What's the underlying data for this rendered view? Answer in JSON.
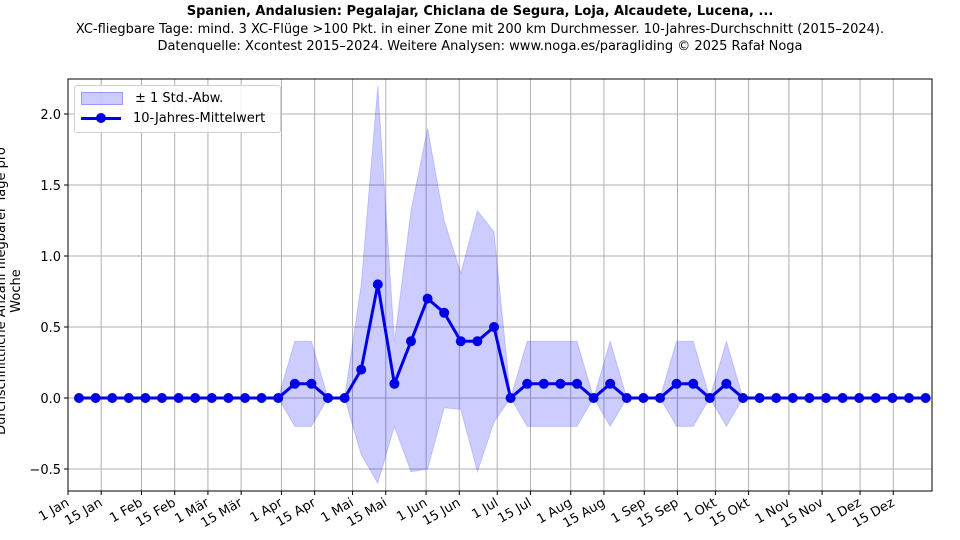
{
  "header": {
    "title": "Spanien, Andalusien: Pegalajar, Chiclana de Segura, Loja, Alcaudete, Lucena, ...",
    "subtitle": "XC-fliegbare Tage: mind. 3 XC-Flüge >100 Pkt. in einer Zone mit 200 km Durchmesser. 10-Jahres-Durchschnitt (2015–2024).",
    "source": "Datenquelle: Xcontest 2015–2024. Weitere Analysen: www.noga.es/paragliding © 2025 Rafał Noga"
  },
  "legend": {
    "band_label": "± 1 Std.-Abw.",
    "line_label": "10-Jahres-Mittelwert"
  },
  "colors": {
    "line": "#0000e6",
    "band": "rgba(0,0,255,0.2)",
    "grid": "#b0b0b0"
  },
  "chart_data": {
    "type": "line",
    "title": "Spanien, Andalusien: Pegalajar, Chiclana de Segura, Loja, Alcaudete, Lucena, ...",
    "xlabel": "",
    "ylabel": "Durchschnittliche Anzahl fliegbarer Tage pro Woche",
    "ylim": [
      -0.65,
      2.25
    ],
    "yticks": [
      -0.5,
      0.0,
      0.5,
      1.0,
      1.5,
      2.0
    ],
    "ytick_labels": [
      "−0.5",
      "0.0",
      "0.5",
      "1.0",
      "1.5",
      "2.0"
    ],
    "xtick_labels": [
      "1 Jan",
      "15 Jan",
      "1 Feb",
      "15 Feb",
      "1 Mär",
      "15 Mär",
      "1 Apr",
      "15 Apr",
      "1 Mai",
      "15 Mai",
      "1 Jun",
      "15 Jun",
      "1 Jul",
      "15 Jul",
      "1 Aug",
      "15 Aug",
      "1 Sep",
      "15 Sep",
      "1 Okt",
      "15 Okt",
      "1 Nov",
      "15 Nov",
      "1 Dez",
      "15 Dez"
    ],
    "xtick_days": [
      0,
      14,
      31,
      45,
      59,
      73,
      90,
      104,
      120,
      134,
      151,
      165,
      181,
      195,
      212,
      226,
      243,
      257,
      273,
      287,
      304,
      318,
      334,
      348
    ],
    "grid": true,
    "legend_position": "upper left",
    "x_week": [
      0,
      1,
      2,
      3,
      4,
      5,
      6,
      7,
      8,
      9,
      10,
      11,
      12,
      13,
      14,
      15,
      16,
      17,
      18,
      19,
      20,
      21,
      22,
      23,
      24,
      25,
      26,
      27,
      28,
      29,
      30,
      31,
      32,
      33,
      34,
      35,
      36,
      37,
      38,
      39,
      40,
      41,
      42,
      43,
      44,
      45,
      46,
      47,
      48,
      49,
      50,
      51
    ],
    "series": [
      {
        "name": "10-Jahres-Mittelwert",
        "values": [
          0,
          0,
          0,
          0,
          0,
          0,
          0,
          0,
          0,
          0,
          0,
          0,
          0,
          0.1,
          0.1,
          0,
          0,
          0.2,
          0.8,
          0.1,
          0.4,
          0.7,
          0.6,
          0.4,
          0.4,
          0.5,
          0,
          0.1,
          0.1,
          0.1,
          0.1,
          0,
          0.1,
          0,
          0,
          0,
          0.1,
          0.1,
          0,
          0.1,
          0,
          0,
          0,
          0,
          0,
          0,
          0,
          0,
          0,
          0,
          0,
          0
        ]
      },
      {
        "name": "± 1 Std.-Abw. (upper)",
        "values": [
          0,
          0,
          0,
          0,
          0,
          0,
          0,
          0,
          0,
          0,
          0,
          0,
          0,
          0.4,
          0.4,
          0,
          0,
          0.8,
          2.2,
          0.4,
          1.32,
          1.9,
          1.25,
          0.88,
          1.32,
          1.17,
          0,
          0.4,
          0.4,
          0.4,
          0.4,
          0,
          0.4,
          0,
          0,
          0,
          0.4,
          0.4,
          0,
          0.4,
          0,
          0,
          0,
          0,
          0,
          0,
          0,
          0,
          0,
          0,
          0,
          0
        ]
      },
      {
        "name": "± 1 Std.-Abw. (lower)",
        "values": [
          0,
          0,
          0,
          0,
          0,
          0,
          0,
          0,
          0,
          0,
          0,
          0,
          0,
          -0.2,
          -0.2,
          0,
          0,
          -0.4,
          -0.6,
          -0.2,
          -0.52,
          -0.5,
          -0.07,
          -0.08,
          -0.52,
          -0.17,
          0,
          -0.2,
          -0.2,
          -0.2,
          -0.2,
          0,
          -0.2,
          0,
          0,
          0,
          -0.2,
          -0.2,
          0,
          -0.2,
          0,
          0,
          0,
          0,
          0,
          0,
          0,
          0,
          0,
          0,
          0,
          0
        ]
      }
    ]
  }
}
